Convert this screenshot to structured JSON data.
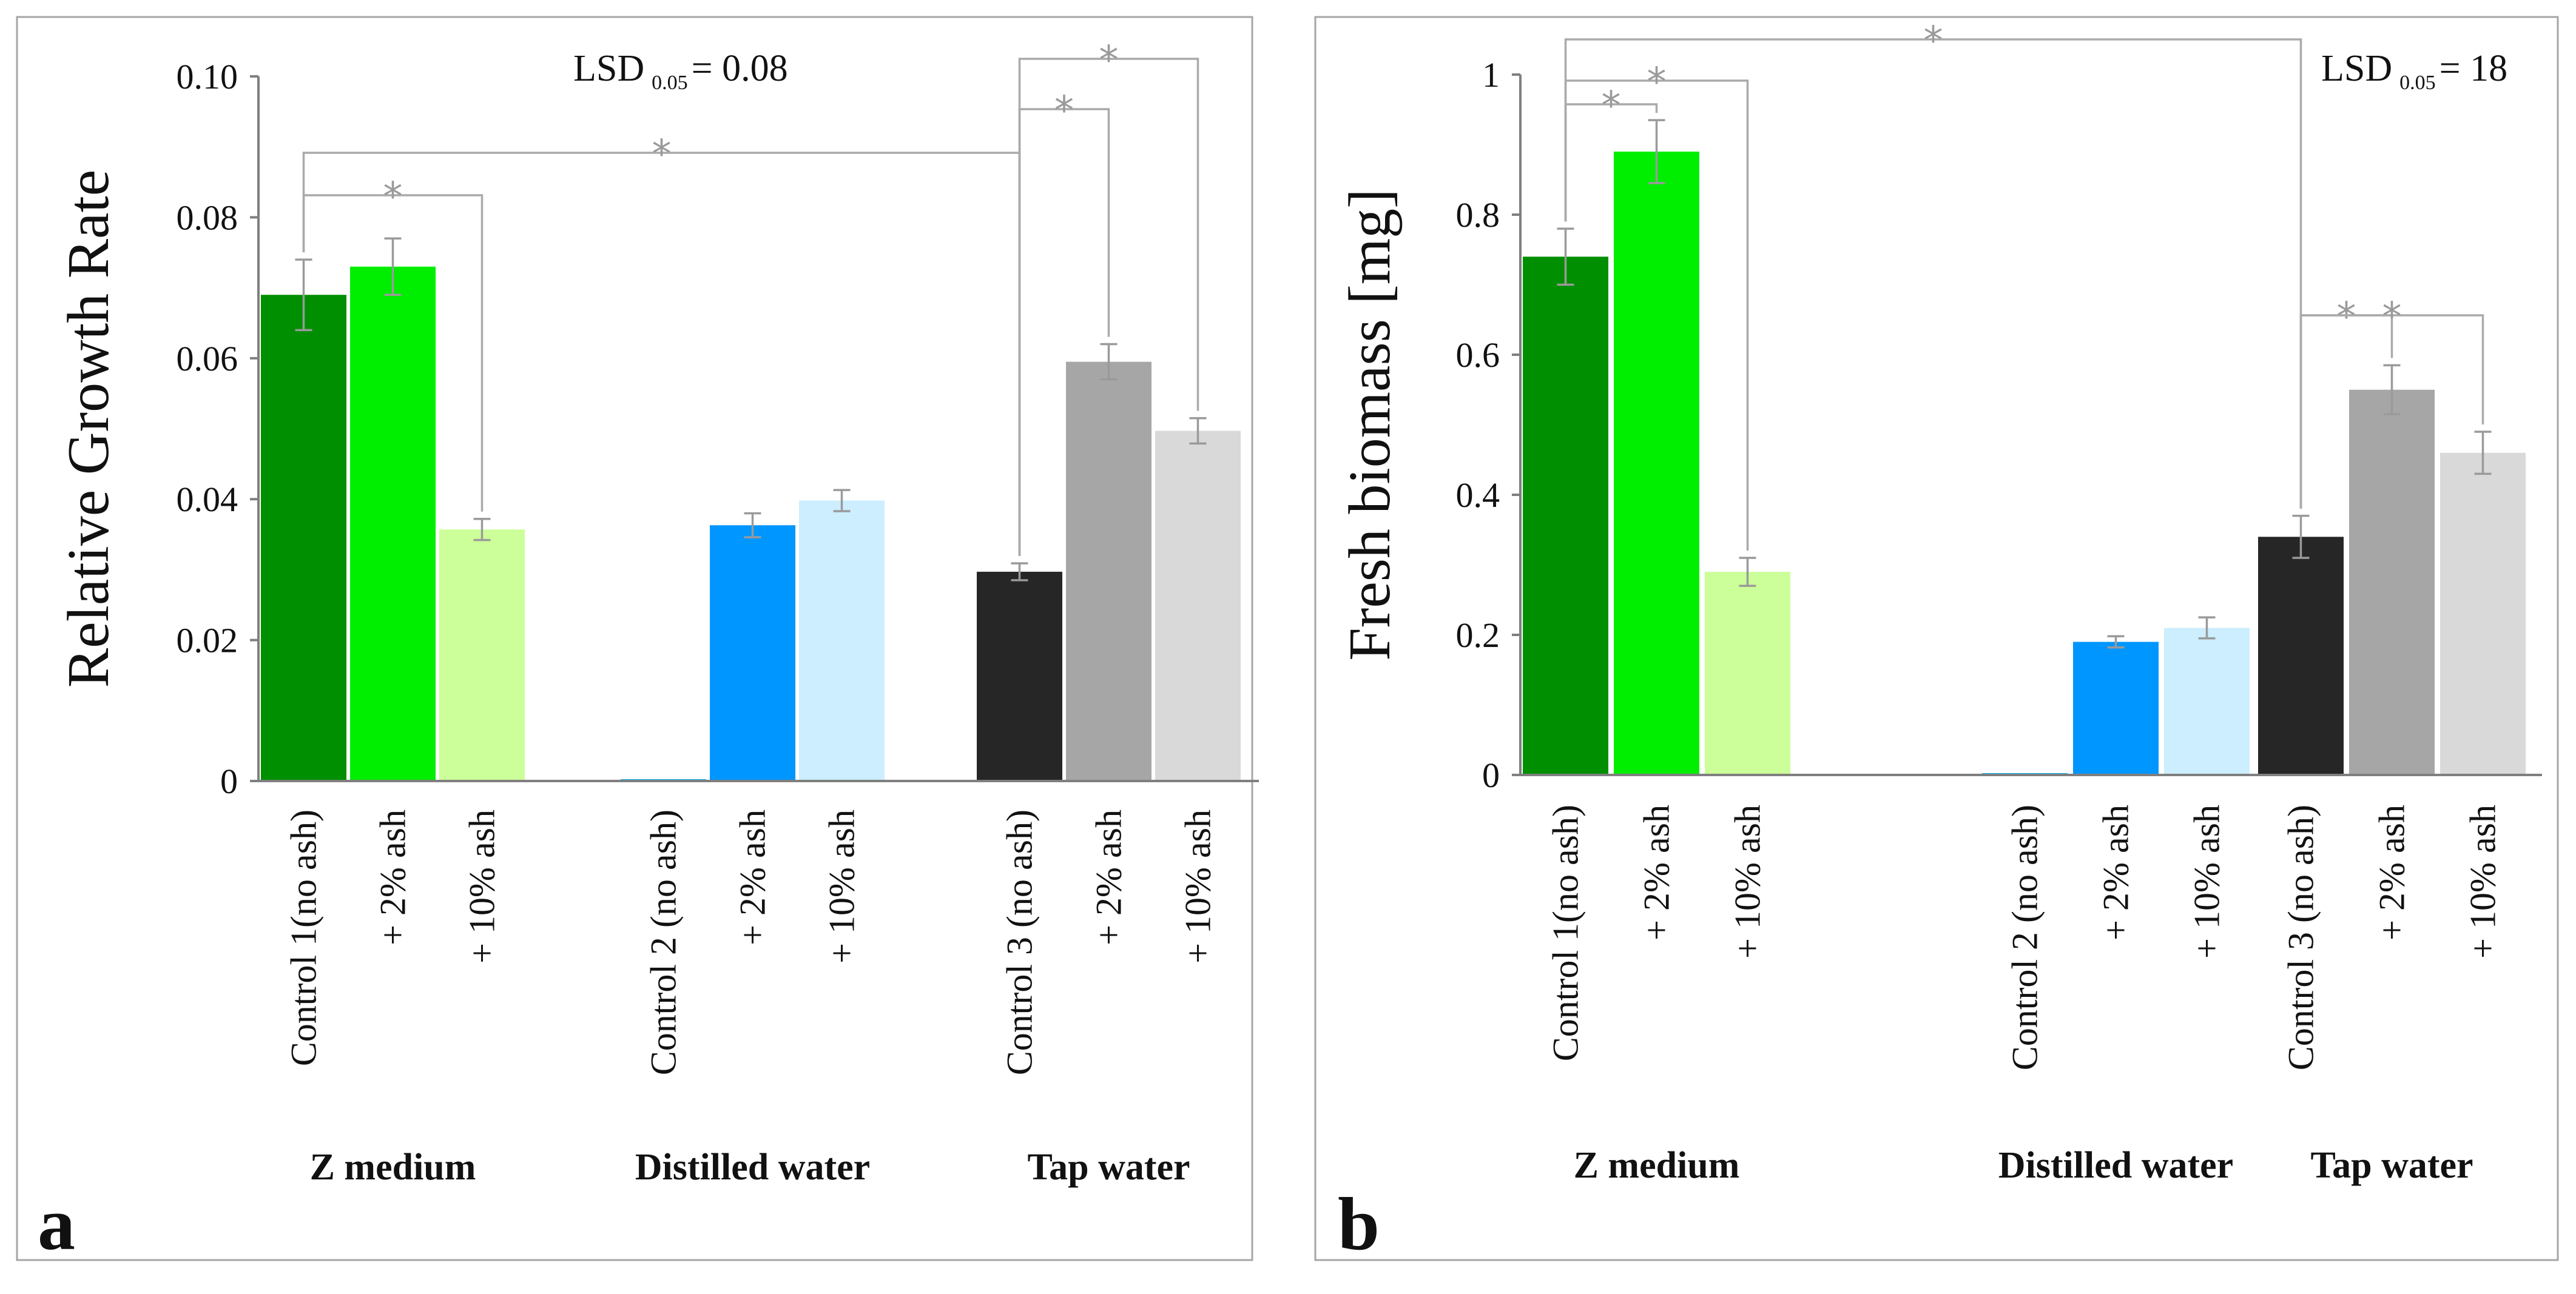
{
  "chart_data": [
    {
      "type": "bar",
      "panel_letter": "a",
      "ylabel": "Relative Growth Rate",
      "ylim": [
        0,
        0.1
      ],
      "yticks": [
        "0",
        "0.02",
        "0.04",
        "0.06",
        "0.08",
        "0.10"
      ],
      "lsd": {
        "prefix": "LSD",
        "subscript": "0.05",
        "suffix": "= 0.08"
      },
      "groups": [
        {
          "name": "Z medium",
          "bars": [
            {
              "label": "Control 1(no ash)",
              "value": 0.069,
              "error": 0.005,
              "color": "#008f00"
            },
            {
              "label": "+ 2% ash",
              "value": 0.073,
              "error": 0.004,
              "color": "#00ee00"
            },
            {
              "label": "+ 10% ash",
              "value": 0.0357,
              "error": 0.0015,
              "color": "#ccff99"
            }
          ]
        },
        {
          "name": "Distilled water",
          "bars": [
            {
              "label": "Control 2 (no ash)",
              "value": 0,
              "error": 0,
              "color": "#00b0f0"
            },
            {
              "label": "+ 2% ash",
              "value": 0.0363,
              "error": 0.0017,
              "color": "#0096ff"
            },
            {
              "label": "+ 10% ash",
              "value": 0.0398,
              "error": 0.0015,
              "color": "#cceeff"
            }
          ]
        },
        {
          "name": "Tap water",
          "bars": [
            {
              "label": "Control 3 (no ash)",
              "value": 0.0297,
              "error": 0.0012,
              "color": "#262626"
            },
            {
              "label": "+ 2% ash",
              "value": 0.0595,
              "error": 0.0025,
              "color": "#a6a6a6"
            },
            {
              "label": "+ 10% ash",
              "value": 0.0497,
              "error": 0.0018,
              "color": "#d9d9d9"
            }
          ]
        }
      ],
      "significance": [
        {
          "from": [
            0,
            0
          ],
          "to": [
            0,
            2
          ],
          "label": "*"
        },
        {
          "from": [
            0,
            0
          ],
          "to": [
            2,
            0
          ],
          "label": "*"
        },
        {
          "from": [
            2,
            0
          ],
          "to": [
            2,
            1
          ],
          "label": "*"
        },
        {
          "from": [
            2,
            0
          ],
          "to": [
            2,
            2
          ],
          "label": "*"
        }
      ]
    },
    {
      "type": "bar",
      "panel_letter": "b",
      "ylabel": "Fresh biomass [mg]",
      "ylim": [
        0,
        1
      ],
      "yticks": [
        "0",
        "0.2",
        "0.4",
        "0.6",
        "0.8",
        "1"
      ],
      "lsd": {
        "prefix": "LSD",
        "subscript": "0.05",
        "suffix": "= 18"
      },
      "groups": [
        {
          "name": "Z medium",
          "bars": [
            {
              "label": "Control 1(no ash)",
              "value": 0.74,
              "error": 0.04,
              "color": "#008f00"
            },
            {
              "label": "+ 2% ash",
              "value": 0.89,
              "error": 0.045,
              "color": "#00ee00"
            },
            {
              "label": "+ 10% ash",
              "value": 0.29,
              "error": 0.02,
              "color": "#ccff99"
            }
          ]
        },
        {
          "name": "Distilled water",
          "bars": [
            {
              "label": "Control 2 (no ash)",
              "value": 0,
              "error": 0,
              "color": "#00b0f0"
            },
            {
              "label": "+ 2% ash",
              "value": 0.19,
              "error": 0.008,
              "color": "#0096ff"
            },
            {
              "label": "+ 10% ash",
              "value": 0.21,
              "error": 0.015,
              "color": "#cceeff"
            }
          ]
        },
        {
          "name": "Tap water",
          "bars": [
            {
              "label": "Control 3 (no ash)",
              "value": 0.34,
              "error": 0.03,
              "color": "#262626"
            },
            {
              "label": "+ 2% ash",
              "value": 0.55,
              "error": 0.035,
              "color": "#a6a6a6"
            },
            {
              "label": "+ 10% ash",
              "value": 0.46,
              "error": 0.03,
              "color": "#d9d9d9"
            }
          ]
        }
      ],
      "significance": [
        {
          "from": [
            0,
            0
          ],
          "to": [
            0,
            1
          ],
          "label": "*"
        },
        {
          "from": [
            0,
            0
          ],
          "to": [
            0,
            2
          ],
          "label": "*"
        },
        {
          "from": [
            0,
            0
          ],
          "to": [
            2,
            0
          ],
          "label": "*"
        },
        {
          "from": [
            2,
            0
          ],
          "to": [
            2,
            1
          ],
          "label": "*"
        },
        {
          "from": [
            2,
            0
          ],
          "to": [
            2,
            2
          ],
          "label": "*"
        }
      ]
    }
  ]
}
